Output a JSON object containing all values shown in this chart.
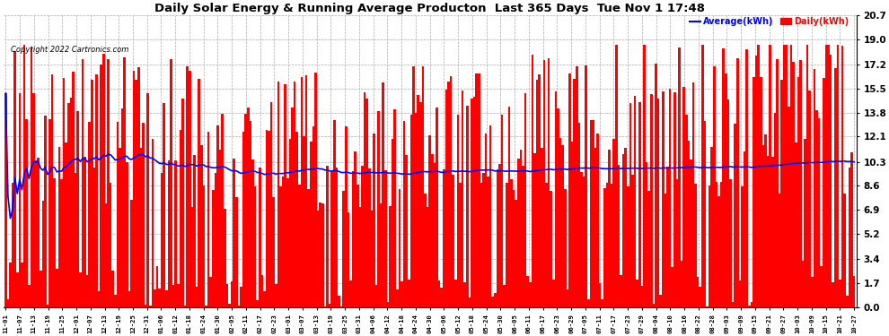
{
  "title": "Daily Solar Energy & Running Average Producton  Last 365 Days  Tue Nov 1 17:48",
  "copyright": "Copyright 2022 Cartronics.com",
  "ylabel_right_ticks": [
    0.0,
    1.7,
    3.4,
    5.2,
    6.9,
    8.6,
    10.3,
    12.1,
    13.8,
    15.5,
    17.2,
    19.0,
    20.7
  ],
  "ymax": 20.7,
  "ymin": 0.0,
  "bar_color": "#FF0000",
  "line_color": "#0000FF",
  "legend_avg_color": "#0000FF",
  "legend_daily_color": "#FF0000",
  "background_color": "#FFFFFF",
  "grid_color": "#AAAAAA",
  "avg_value": 10.3,
  "n_days": 365,
  "rolling_window": 365
}
